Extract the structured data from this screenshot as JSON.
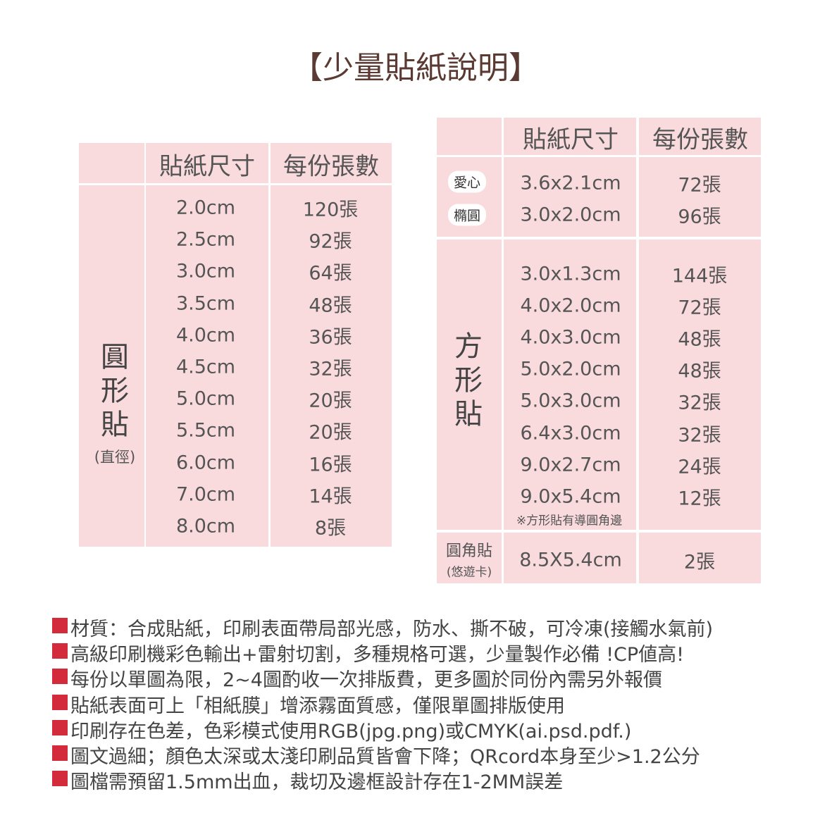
{
  "title": "【少量貼紙說明】",
  "left_table": {
    "header": [
      "貼紙尺寸",
      "每份張數"
    ],
    "label": "圓形貼",
    "note": "(直徑)",
    "rows": [
      [
        "2.0cm",
        "120張"
      ],
      [
        "2.5cm",
        "92張"
      ],
      [
        "3.0cm",
        "64張"
      ],
      [
        "3.5cm",
        "48張"
      ],
      [
        "4.0cm",
        "36張"
      ],
      [
        "4.5cm",
        "32張"
      ],
      [
        "5.0cm",
        "20張"
      ],
      [
        "5.5cm",
        "20張"
      ],
      [
        "6.0cm",
        "16張"
      ],
      [
        "7.0cm",
        "14張"
      ],
      [
        "8.0cm",
        "8張"
      ]
    ]
  },
  "right_table": {
    "header": [
      "貼紙尺寸",
      "每份張數"
    ],
    "groups": [
      {
        "labels": [
          "愛心",
          "橢圓"
        ],
        "rows": [
          [
            "3.6x2.1cm",
            "72張"
          ],
          [
            "3.0x2.0cm",
            "96張"
          ]
        ]
      },
      {
        "label": "方形貼",
        "rows": [
          [
            "3.0x1.3cm",
            "144張"
          ],
          [
            "4.0x2.0cm",
            "72張"
          ],
          [
            "4.0x3.0cm",
            "48張"
          ],
          [
            "5.0x2.0cm",
            "48張"
          ],
          [
            "5.0x3.0cm",
            "32張"
          ],
          [
            "6.4x3.0cm",
            "32張"
          ],
          [
            "9.0x2.7cm",
            "24張"
          ],
          [
            "9.0x5.4cm",
            "12張"
          ]
        ],
        "note": "※方形貼有導圓角邊"
      },
      {
        "label": "圓角貼",
        "sublabel": "(悠遊卡)",
        "rows": [
          [
            "8.5X5.4cm",
            "2張"
          ]
        ]
      }
    ]
  },
  "notes": [
    "材質：合成貼紙，印刷表面帶局部光感，防水、撕不破，可冷凍(接觸水氣前)",
    "高級印刷機彩色輸出+雷射切割，多種規格可選，少量製作必備 !CP値高!",
    "每份以單圖為限，2~4圖酌收一次排版費，更多圖於同份內需另外報價",
    "貼紙表面可上「相紙膜」增添霧面質感，僅限單圖排版使用",
    "印刷存在色差，色彩模式使用RGB(jpg.png)或CMYK(ai.psd.pdf.)",
    "圖文過細；顏色太深或太淺印刷品質皆會下降；QRcord本身至少>1.2公分",
    "圖檔需預留1.5mm出血，裁切及邊框設計存在1-2MM誤差"
  ]
}
